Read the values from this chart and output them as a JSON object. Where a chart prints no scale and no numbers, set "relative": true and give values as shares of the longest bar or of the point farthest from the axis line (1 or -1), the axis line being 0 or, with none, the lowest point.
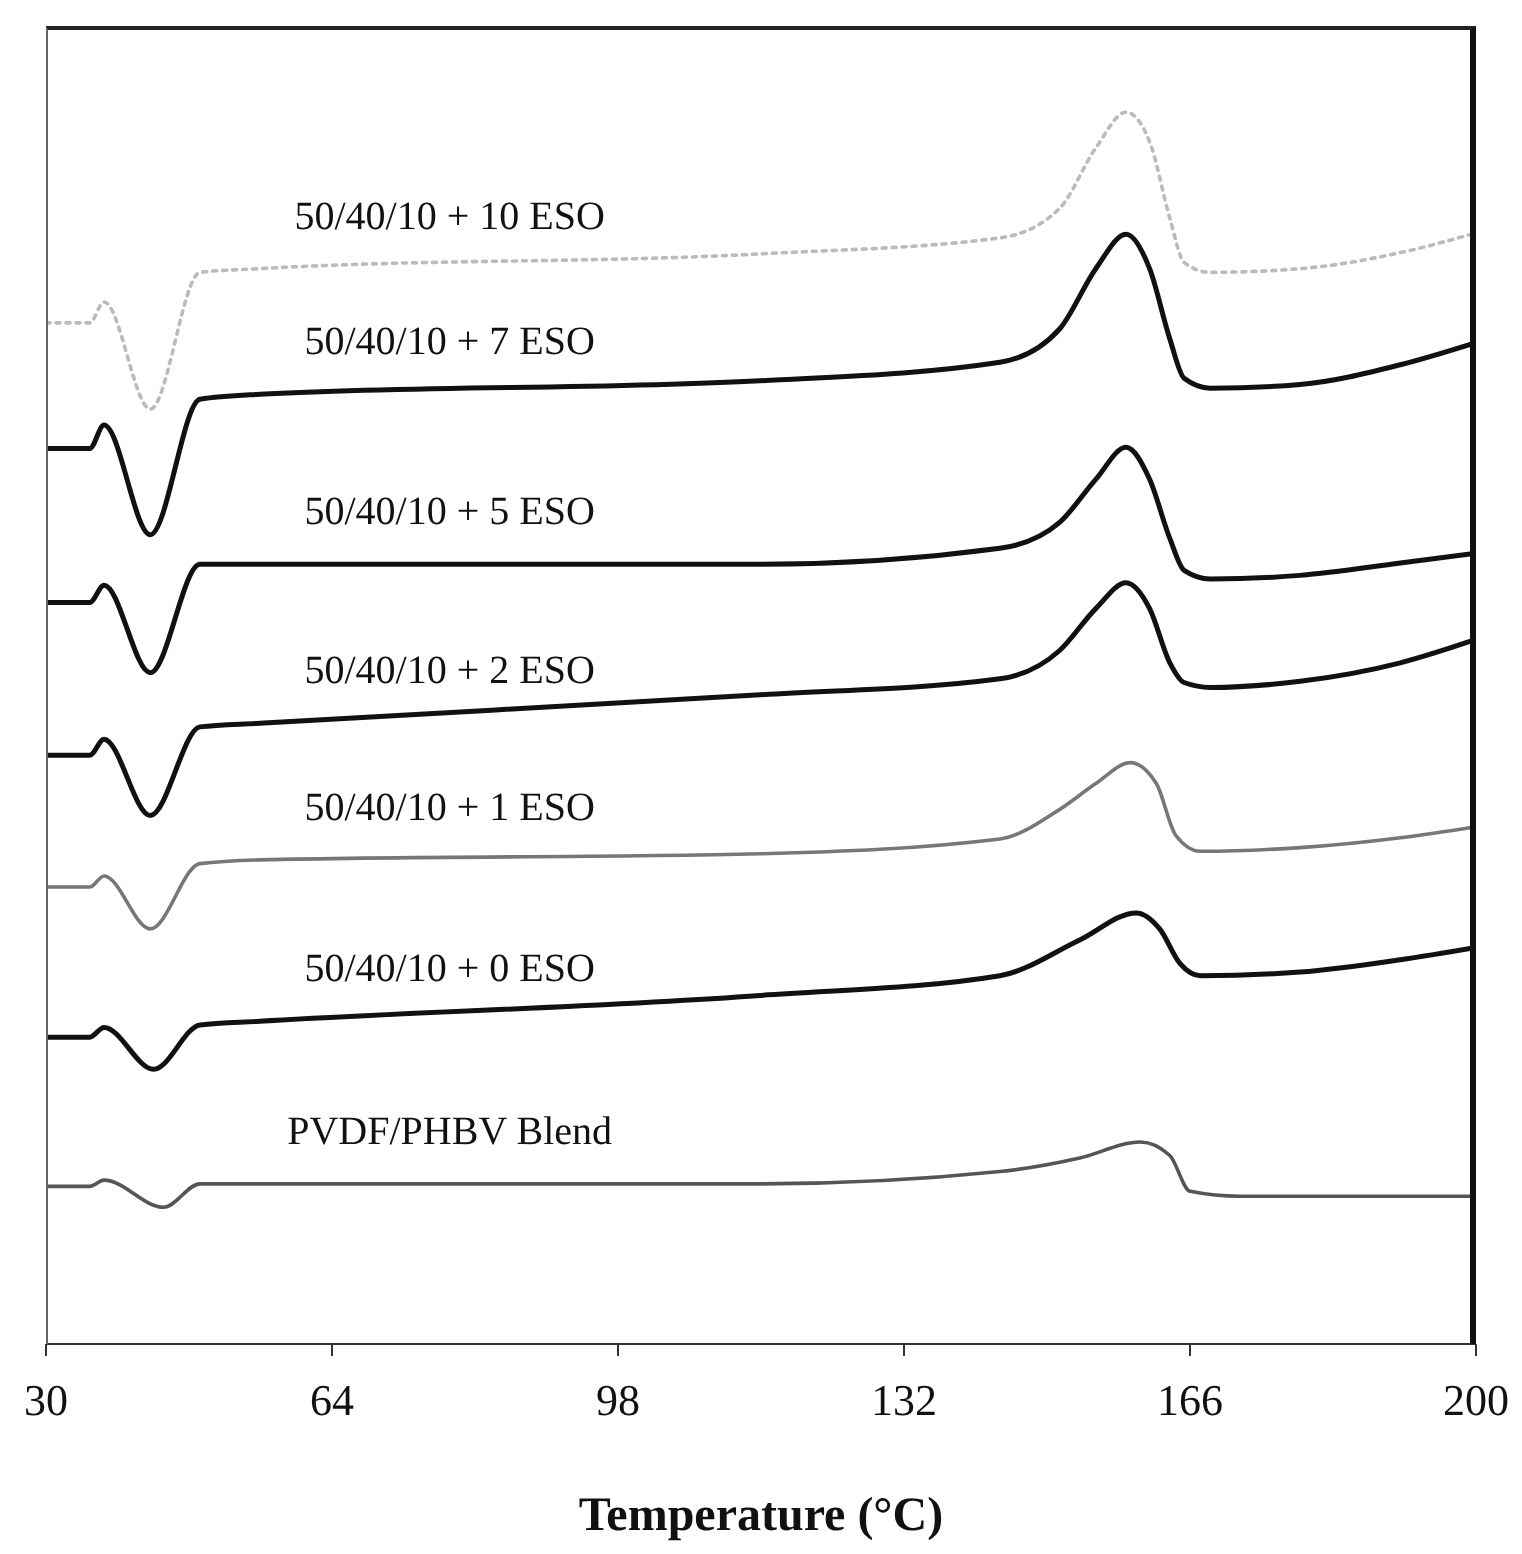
{
  "chart_data": {
    "type": "line",
    "xlabel": "Temperature (°C)",
    "xlim": [
      30,
      200
    ],
    "xticks": [
      30,
      64,
      98,
      132,
      166,
      200
    ],
    "relative": true,
    "marker": "none",
    "series": [
      {
        "name": "50/40/10 + 10 ESO",
        "color": "#bbbbbb",
        "line_style": "dotted",
        "x": [
          30,
          35.2,
          36.9,
          42.4,
          48.3,
          55.4,
          114.9,
          143.4,
          150.5,
          154.8,
          158.4,
          161.2,
          163.6,
          165.3,
          168.4,
          179.1,
          191,
          200
        ],
        "values": [
          0.829,
          0.829,
          0.846,
          0.759,
          0.87,
          0.873,
          0.885,
          0.898,
          0.922,
          0.971,
          1.0,
          0.976,
          0.914,
          0.878,
          0.87,
          0.873,
          0.886,
          0.902
        ]
      },
      {
        "name": "50/40/10 + 7 ESO",
        "color": "#111111",
        "x": [
          30,
          35.2,
          36.9,
          42.4,
          48.3,
          55.4,
          114.9,
          143.4,
          150.5,
          154.8,
          158.4,
          161.2,
          163.6,
          165.3,
          168.4,
          179.1,
          191,
          200
        ],
        "values": [
          0.727,
          0.727,
          0.746,
          0.657,
          0.767,
          0.771,
          0.782,
          0.797,
          0.824,
          0.873,
          0.901,
          0.873,
          0.816,
          0.784,
          0.776,
          0.779,
          0.795,
          0.813
        ]
      },
      {
        "name": "50/40/10 + 5 ESO",
        "color": "#111111",
        "x": [
          30,
          35.2,
          36.9,
          42.4,
          48.3,
          55.4,
          114.9,
          143.4,
          150.5,
          154.8,
          158.4,
          161.2,
          163.6,
          165.3,
          168.4,
          179.1,
          191,
          200
        ],
        "values": [
          0.602,
          0.602,
          0.616,
          0.545,
          0.633,
          0.633,
          0.633,
          0.646,
          0.667,
          0.702,
          0.728,
          0.702,
          0.654,
          0.628,
          0.621,
          0.624,
          0.634,
          0.642
        ]
      },
      {
        "name": "50/40/10 + 2 ESO",
        "color": "#111111",
        "x": [
          30,
          35.2,
          36.9,
          42.4,
          48.3,
          55.4,
          114.9,
          143.4,
          150.5,
          154.8,
          158.4,
          161.2,
          163.6,
          165.3,
          168.4,
          179.1,
          191,
          200
        ],
        "values": [
          0.478,
          0.478,
          0.491,
          0.429,
          0.501,
          0.504,
          0.527,
          0.54,
          0.563,
          0.597,
          0.618,
          0.597,
          0.553,
          0.537,
          0.533,
          0.538,
          0.553,
          0.572
        ]
      },
      {
        "name": "50/40/10 + 1 ESO",
        "color": "#777777",
        "x": [
          30,
          35.2,
          36.9,
          42.4,
          48.3,
          55.4,
          114.9,
          143.4,
          150.5,
          154.8,
          158.9,
          162,
          164.3,
          167.2,
          179.1,
          191,
          200
        ],
        "values": [
          0.371,
          0.371,
          0.38,
          0.337,
          0.39,
          0.393,
          0.398,
          0.41,
          0.434,
          0.455,
          0.472,
          0.455,
          0.413,
          0.4,
          0.403,
          0.411,
          0.42
        ]
      },
      {
        "name": "50/40/10 + 0 ESO",
        "color": "#111111",
        "x": [
          30,
          35.2,
          36.9,
          42.8,
          48.3,
          55.4,
          114.9,
          143.4,
          152.9,
          159.6,
          162.4,
          164.8,
          167.2,
          179.1,
          191,
          200
        ],
        "values": [
          0.249,
          0.249,
          0.257,
          0.223,
          0.259,
          0.262,
          0.283,
          0.299,
          0.328,
          0.35,
          0.337,
          0.309,
          0.299,
          0.302,
          0.312,
          0.322
        ]
      },
      {
        "name": "PVDF/PHBV Blend",
        "color": "#555555",
        "x": [
          30,
          35.2,
          36.9,
          44,
          48.3,
          55.4,
          114.9,
          143.4,
          152.9,
          160.1,
          163.6,
          166,
          171.9,
          200
        ],
        "values": [
          0.128,
          0.128,
          0.133,
          0.111,
          0.13,
          0.13,
          0.13,
          0.14,
          0.151,
          0.164,
          0.153,
          0.124,
          0.12,
          0.12
        ]
      }
    ]
  }
}
